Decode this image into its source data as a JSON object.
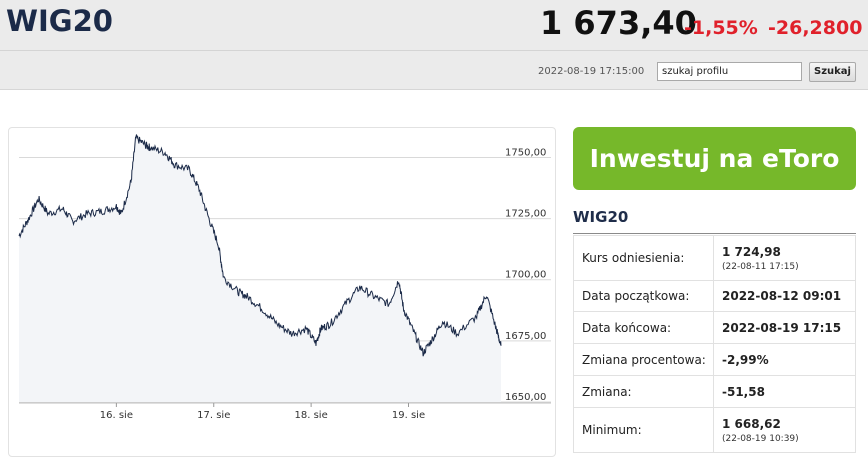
{
  "header": {
    "title": "WIG20",
    "price": "1 673,40",
    "change_pct": "-1,55%",
    "change_abs": "-26,2800",
    "timestamp": "2022-08-19 17:15:00",
    "search_value": "szukaj profilu",
    "search_button": "Szukaj"
  },
  "promo": {
    "label": "Inwestuj na eToro"
  },
  "info": {
    "title": "WIG20",
    "rows": [
      {
        "label": "Kurs odniesienia:",
        "value": "1 724,98",
        "sub": "(22-08-11 17:15)"
      },
      {
        "label": "Data początkowa:",
        "value": "2022-08-12 09:01",
        "sub": ""
      },
      {
        "label": "Data końcowa:",
        "value": "2022-08-19 17:15",
        "sub": ""
      },
      {
        "label": "Zmiana procentowa:",
        "value": "-2,99%",
        "sub": ""
      },
      {
        "label": "Zmiana:",
        "value": "-51,58",
        "sub": ""
      },
      {
        "label": "Minimum:",
        "value": "1 668,62",
        "sub": "(22-08-19 10:39)"
      }
    ]
  },
  "colors": {
    "accent_red": "#e0212b",
    "promo_green": "#76b82a",
    "title_navy": "#1b2a48",
    "line": "#1b2a48"
  },
  "chart_data": {
    "type": "line",
    "title": "",
    "xlabel": "",
    "ylabel": "",
    "ylim": [
      1650,
      1760
    ],
    "yticks": [
      1650,
      1675,
      1700,
      1725,
      1750
    ],
    "ytick_labels": [
      "1650,00",
      "1675,00",
      "1700,00",
      "1725,00",
      "1750,00"
    ],
    "xticks": [
      1,
      2,
      3,
      4
    ],
    "xtick_labels": [
      "16. sie",
      "17. sie",
      "18. sie",
      "19. sie"
    ],
    "xlim": [
      0,
      4.95
    ],
    "grid": true,
    "series": [
      {
        "x": [
          0,
          0.1,
          0.2,
          0.3,
          0.45,
          0.55,
          0.7,
          0.85,
          1.0,
          1.05,
          1.15,
          1.2,
          1.3,
          1.35,
          1.5,
          1.6,
          1.75,
          1.85,
          1.95,
          2.05,
          2.1,
          2.25,
          2.35,
          2.5,
          2.65,
          2.8,
          2.95,
          3.05,
          3.1,
          3.2,
          3.35,
          3.5,
          3.65,
          3.8,
          3.9,
          3.95,
          4.05,
          4.15,
          4.25,
          4.35,
          4.5,
          4.7,
          4.8,
          4.9,
          4.95
        ],
        "y": [
          1718,
          1725,
          1733,
          1727,
          1729,
          1724,
          1727,
          1728,
          1730,
          1727,
          1740,
          1758,
          1755,
          1754,
          1752,
          1747,
          1745,
          1737,
          1725,
          1714,
          1701,
          1695,
          1693,
          1688,
          1682,
          1678,
          1680,
          1674,
          1680,
          1682,
          1690,
          1697,
          1693,
          1690,
          1700,
          1688,
          1679,
          1670,
          1676,
          1683,
          1678,
          1685,
          1694,
          1680,
          1673
        ]
      }
    ]
  }
}
